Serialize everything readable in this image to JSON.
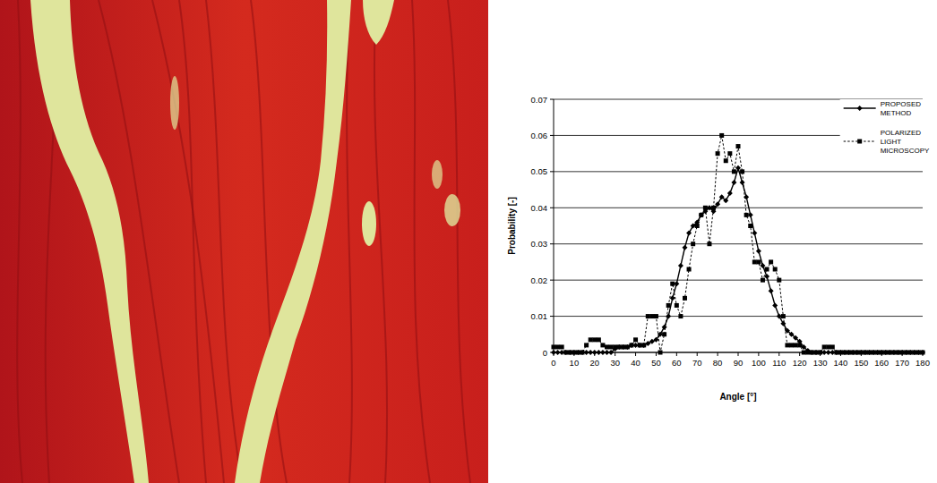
{
  "chart_data": {
    "type": "line",
    "x_label": "Angle [°]",
    "y_label": "Probability [-]",
    "x": [
      0,
      2,
      4,
      6,
      8,
      10,
      12,
      14,
      16,
      18,
      20,
      22,
      24,
      26,
      28,
      30,
      32,
      34,
      36,
      38,
      40,
      42,
      44,
      46,
      48,
      50,
      52,
      54,
      56,
      58,
      60,
      62,
      64,
      66,
      68,
      70,
      72,
      74,
      76,
      78,
      80,
      82,
      84,
      86,
      88,
      90,
      92,
      94,
      96,
      98,
      100,
      102,
      104,
      106,
      108,
      110,
      112,
      114,
      116,
      118,
      120,
      122,
      124,
      126,
      128,
      130,
      132,
      134,
      136,
      138,
      140,
      142,
      144,
      146,
      148,
      150,
      152,
      154,
      156,
      158,
      160,
      162,
      164,
      166,
      168,
      170,
      172,
      174,
      176,
      178,
      180
    ],
    "series": [
      {
        "name": "PROPOSED METHOD",
        "color": "#000000",
        "marker": "diamond",
        "line_style": "solid",
        "values": [
          0,
          0,
          0,
          0,
          0,
          0,
          0,
          0,
          0,
          0,
          0,
          0,
          0,
          0,
          0,
          0.001,
          0.0015,
          0.0015,
          0.0015,
          0.002,
          0.002,
          0.002,
          0.002,
          0.0025,
          0.003,
          0.0035,
          0.005,
          0.007,
          0.01,
          0.015,
          0.019,
          0.024,
          0.029,
          0.033,
          0.035,
          0.036,
          0.038,
          0.039,
          0.04,
          0.039,
          0.041,
          0.043,
          0.042,
          0.044,
          0.047,
          0.051,
          0.047,
          0.043,
          0.038,
          0.033,
          0.028,
          0.024,
          0.021,
          0.017,
          0.013,
          0.01,
          0.008,
          0.006,
          0.005,
          0.004,
          0.003,
          0.0015,
          0.0005,
          0,
          0,
          0,
          0,
          0,
          0,
          0,
          0,
          0,
          0,
          0,
          0,
          0,
          0,
          0,
          0,
          0,
          0,
          0,
          0,
          0,
          0,
          0,
          0,
          0,
          0,
          0,
          0
        ]
      },
      {
        "name": "POLARIZED LIGHT MICROSCOPY",
        "color": "#000000",
        "marker": "square",
        "line_style": "dashed",
        "values": [
          0.0015,
          0.0015,
          0.0015,
          0,
          0,
          0,
          0,
          0,
          0.002,
          0.0035,
          0.0035,
          0.0035,
          0.002,
          0.0015,
          0.0015,
          0.0015,
          0.0015,
          0.0015,
          0.0015,
          0.002,
          0.0035,
          0.002,
          0.002,
          0.01,
          0.01,
          0.01,
          0,
          0.005,
          0.013,
          0.019,
          0.013,
          0.01,
          0.015,
          0.023,
          0.03,
          0.035,
          0.038,
          0.04,
          0.03,
          0.04,
          0.055,
          0.06,
          0.053,
          0.055,
          0.05,
          0.057,
          0.05,
          0.038,
          0.035,
          0.025,
          0.025,
          0.02,
          0.023,
          0.025,
          0.023,
          0.02,
          0.01,
          0.002,
          0.002,
          0.002,
          0.002,
          0,
          0,
          0,
          0,
          0,
          0.0015,
          0.0015,
          0.0015,
          0,
          0,
          0,
          0,
          0,
          0,
          0,
          0,
          0,
          0,
          0,
          0,
          0,
          0,
          0,
          0,
          0,
          0,
          0,
          0,
          0,
          0
        ]
      }
    ],
    "xlim": [
      0,
      180
    ],
    "ylim": [
      0,
      0.07
    ],
    "xticks": [
      0,
      10,
      20,
      30,
      40,
      50,
      60,
      70,
      80,
      90,
      100,
      110,
      120,
      130,
      140,
      150,
      160,
      170,
      180
    ],
    "yticks": [
      0,
      0.01,
      0.02,
      0.03,
      0.04,
      0.05,
      0.06,
      0.07
    ],
    "grid": true,
    "legend": "upper right"
  }
}
